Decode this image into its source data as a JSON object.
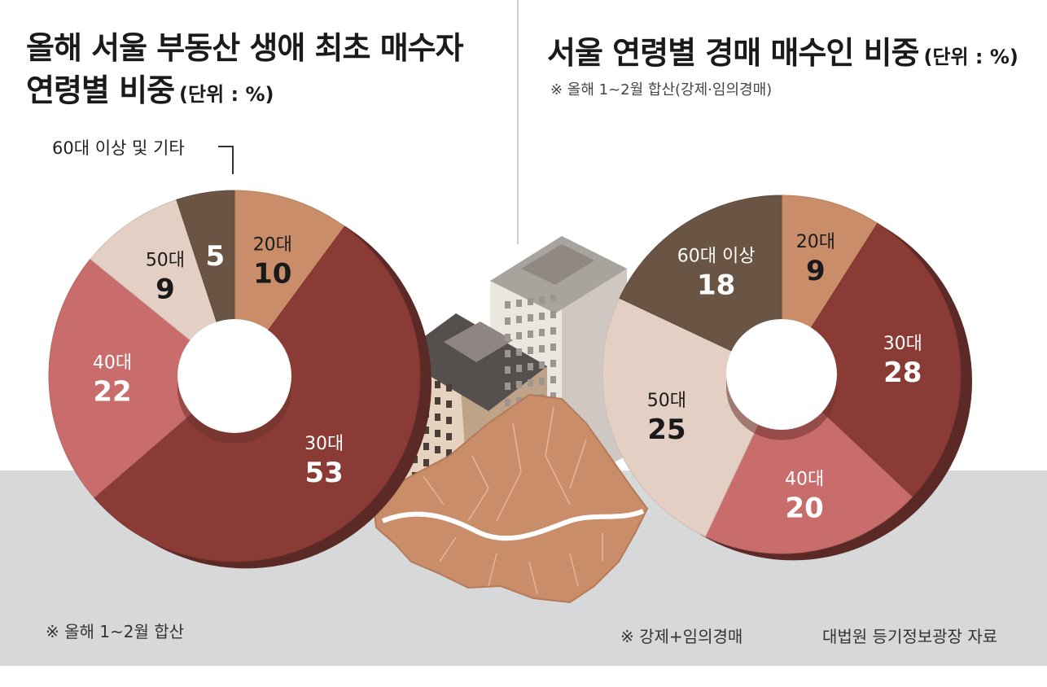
{
  "left": {
    "title_line1": "올해 서울 부동산 생애 최초 매수자",
    "title_line2": "연령별 비중",
    "unit": "(단위 : %)",
    "callout_label": "60대 이상 및 기타",
    "footnote": "※ 올해 1~2월 합산"
  },
  "right": {
    "title": "서울 연령별 경매 매수인 비중",
    "unit": "(단위 : %)",
    "subnote": "※ 올해 1~2월 합산(강제·임의경매)",
    "footnote": "※ 강제+임의경매"
  },
  "source": "대법원 등기정보광장 자료",
  "colors": {
    "20s": "#c98d69",
    "30s": "#8a3b35",
    "40s": "#c86d6b",
    "50s": "#e3cfc3",
    "60s": "#6a5444",
    "floor": "#d7d8da"
  },
  "chart_data": [
    {
      "type": "pie",
      "title": "올해 서울 부동산 생애 최초 매수자 연령별 비중",
      "unit": "%",
      "slices": [
        {
          "label": "20대",
          "value": 10,
          "color": "#c98d69"
        },
        {
          "label": "30대",
          "value": 53,
          "color": "#8a3b35"
        },
        {
          "label": "40대",
          "value": 22,
          "color": "#c86d6b"
        },
        {
          "label": "50대",
          "value": 9,
          "color": "#e3cfc3"
        },
        {
          "label": "",
          "value": 5,
          "color": "#6a5444"
        }
      ]
    },
    {
      "type": "pie",
      "title": "서울 연령별 경매 매수인 비중",
      "unit": "%",
      "slices": [
        {
          "label": "20대",
          "value": 9,
          "color": "#c98d69"
        },
        {
          "label": "30대",
          "value": 28,
          "color": "#8a3b35"
        },
        {
          "label": "40대",
          "value": 20,
          "color": "#c86d6b"
        },
        {
          "label": "50대",
          "value": 25,
          "color": "#e3cfc3"
        },
        {
          "label": "60대 이상",
          "value": 18,
          "color": "#6a5444"
        }
      ]
    }
  ]
}
